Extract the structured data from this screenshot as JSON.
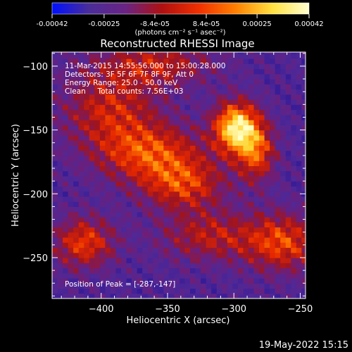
{
  "chart_data": {
    "type": "heatmap",
    "title": "Reconstructed RHESSI Image",
    "xlabel": "Heliocentric X (arcsec)",
    "ylabel": "Heliocentric Y (arcsec)",
    "xlim": [
      -437,
      -246
    ],
    "ylim": [
      -282,
      -89
    ],
    "xticks": [
      -400,
      -350,
      -300,
      -250
    ],
    "yticks": [
      -100,
      -150,
      -200,
      -250
    ],
    "colorbar": {
      "range": [
        -0.00042,
        0.00042
      ],
      "tick_values": [
        -0.00042,
        -0.00025,
        -8.4e-05,
        8.4e-05,
        0.00025,
        0.00042
      ],
      "tick_labels": [
        "-0.00042",
        "-0.00025",
        "-8.4e-05",
        "8.4e-05",
        "0.00025",
        "0.00042"
      ],
      "unit_label": "(photons cm⁻² s⁻¹ asec⁻²)",
      "colors": [
        "#0010ff",
        "#4a2d9a",
        "#6a2484",
        "#b01010",
        "#f03000",
        "#ff8000",
        "#ffe040",
        "#ffffd0"
      ]
    },
    "info_lines": [
      "11-Mar-2015 14:55:56.000 to 15:00:28.000",
      "Detectors: 3F 5F 6F 7F 8F 9F, Att 0",
      "Energy Range: 25.0 - 50.0 keV",
      "Clean     Total counts: 7.56E+03"
    ],
    "peak_label": "Position of Peak = [-287,-147]",
    "peak": {
      "x": -287,
      "y": -147
    },
    "sources": [
      {
        "x": -300,
        "y": -150,
        "amp": 1.0,
        "sx": 12,
        "sy": 14
      },
      {
        "x": -285,
        "y": -170,
        "amp": 0.55,
        "sx": 10,
        "sy": 16
      },
      {
        "x": -365,
        "y": -170,
        "amp": 0.55,
        "sx": 28,
        "sy": 16
      },
      {
        "x": -340,
        "y": -195,
        "amp": 0.5,
        "sx": 22,
        "sy": 14
      },
      {
        "x": -395,
        "y": -135,
        "amp": 0.45,
        "sx": 26,
        "sy": 22
      },
      {
        "x": -415,
        "y": -240,
        "amp": 0.55,
        "sx": 16,
        "sy": 14
      },
      {
        "x": -265,
        "y": -240,
        "amp": 0.55,
        "sx": 20,
        "sy": 16
      },
      {
        "x": -320,
        "y": -235,
        "amp": 0.4,
        "sx": 26,
        "sy": 14
      },
      {
        "x": -360,
        "y": -100,
        "amp": 0.4,
        "sx": 30,
        "sy": 12
      }
    ]
  },
  "footer": {
    "timestamp": "19-May-2022 15:15"
  }
}
